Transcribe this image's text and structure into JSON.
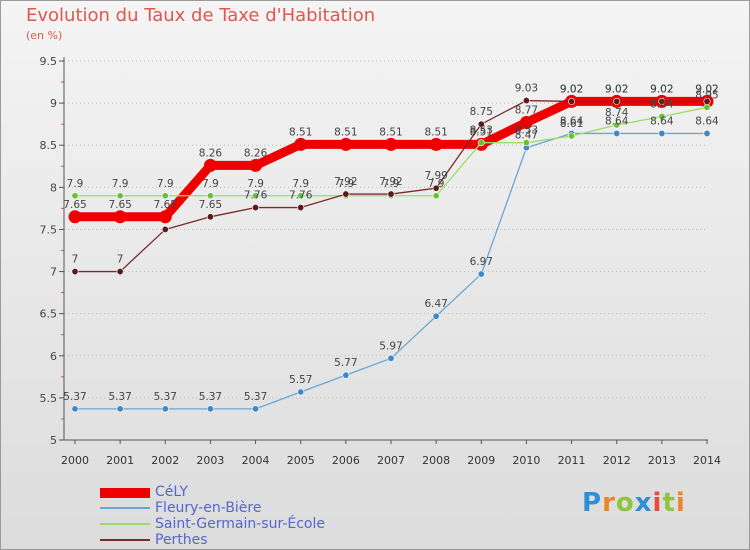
{
  "title": "Evolution du Taux de Taxe d'Habitation",
  "subtitle": "(en %)",
  "brand": {
    "text": "Proxiti",
    "letters": [
      {
        "ch": "P",
        "color": "#2e8ed6"
      },
      {
        "ch": "r",
        "color": "#e8882a"
      },
      {
        "ch": "o",
        "color": "#8cc63e"
      },
      {
        "ch": "x",
        "color": "#2e8ed6"
      },
      {
        "ch": "i",
        "color": "#e84a3c"
      },
      {
        "ch": "t",
        "color": "#8cc63e"
      },
      {
        "ch": "i",
        "color": "#e8882a"
      }
    ]
  },
  "chart_data": {
    "type": "line",
    "title": "Evolution du Taux de Taxe d'Habitation",
    "subtitle": "(en %)",
    "x": [
      "2000",
      "2001",
      "2002",
      "2003",
      "2004",
      "2005",
      "2006",
      "2007",
      "2008",
      "2009",
      "2010",
      "2011",
      "2012",
      "2013",
      "2014"
    ],
    "y_ticks": [
      "5",
      "5.5",
      "6",
      "6.5",
      "7",
      "7.5",
      "8",
      "8.5",
      "9",
      "9.5"
    ],
    "ylim": [
      5,
      9.5
    ],
    "grid": "horizontal-dotted",
    "legend_position": "bottom-left",
    "series": [
      {
        "name": "CéLY",
        "color": "#ee0000",
        "weight": "thick",
        "values": [
          7.65,
          7.65,
          7.65,
          8.26,
          8.26,
          8.51,
          8.51,
          8.51,
          8.51,
          8.51,
          8.77,
          9.02,
          9.02,
          9.02,
          9.02
        ],
        "labels": [
          "7.65",
          "7.65",
          "7.65",
          "8.26",
          "8.26",
          "8.51",
          "8.51",
          "8.51",
          "8.51",
          "8.51",
          "8.77",
          "9.02",
          "9.02",
          "9.02",
          "9.02"
        ]
      },
      {
        "name": "Fleury-en-Bière",
        "color": "#6aa6d4",
        "marker": "#3f88c8",
        "weight": "thin",
        "values": [
          5.37,
          5.37,
          5.37,
          5.37,
          5.37,
          5.57,
          5.77,
          5.97,
          6.47,
          6.97,
          8.47,
          8.64,
          8.64,
          8.64,
          8.64
        ],
        "labels": [
          "5.37",
          "5.37",
          "5.37",
          "5.37",
          "5.37",
          "5.57",
          "5.77",
          "5.97",
          "6.47",
          "6.97",
          "8.47",
          "8.64",
          "8.64",
          "8.64",
          "8.64"
        ]
      },
      {
        "name": "Saint-Germain-sur-École",
        "color": "#99dd66",
        "marker": "#66c233",
        "weight": "thin",
        "values": [
          7.9,
          7.9,
          7.9,
          7.9,
          7.9,
          7.9,
          7.9,
          7.9,
          7.9,
          8.53,
          8.53,
          8.61,
          8.74,
          8.84,
          8.95
        ],
        "labels": [
          "7.9",
          "7.9",
          "7.9",
          "7.9",
          "7.9",
          "7.9",
          "7.9",
          "7.9",
          "7.9",
          "8.53",
          "8.53",
          "8.61",
          "8.74",
          "8.84",
          "8.95"
        ]
      },
      {
        "name": "Perthes",
        "color": "#7a2b2b",
        "marker": "#5a1a1a",
        "weight": "thin",
        "values": [
          7.0,
          7.0,
          7.5,
          7.65,
          7.76,
          7.76,
          7.92,
          7.92,
          7.99,
          8.75,
          9.03,
          9.02,
          9.02,
          9.02,
          9.02
        ],
        "labels": [
          "7",
          "7",
          "",
          "7.65",
          "7.76",
          "7.76",
          "7.92",
          "7.92",
          "7.99",
          "8.75",
          "9.03",
          "9.02",
          "9.02",
          "9.02",
          "9.02"
        ]
      }
    ]
  }
}
